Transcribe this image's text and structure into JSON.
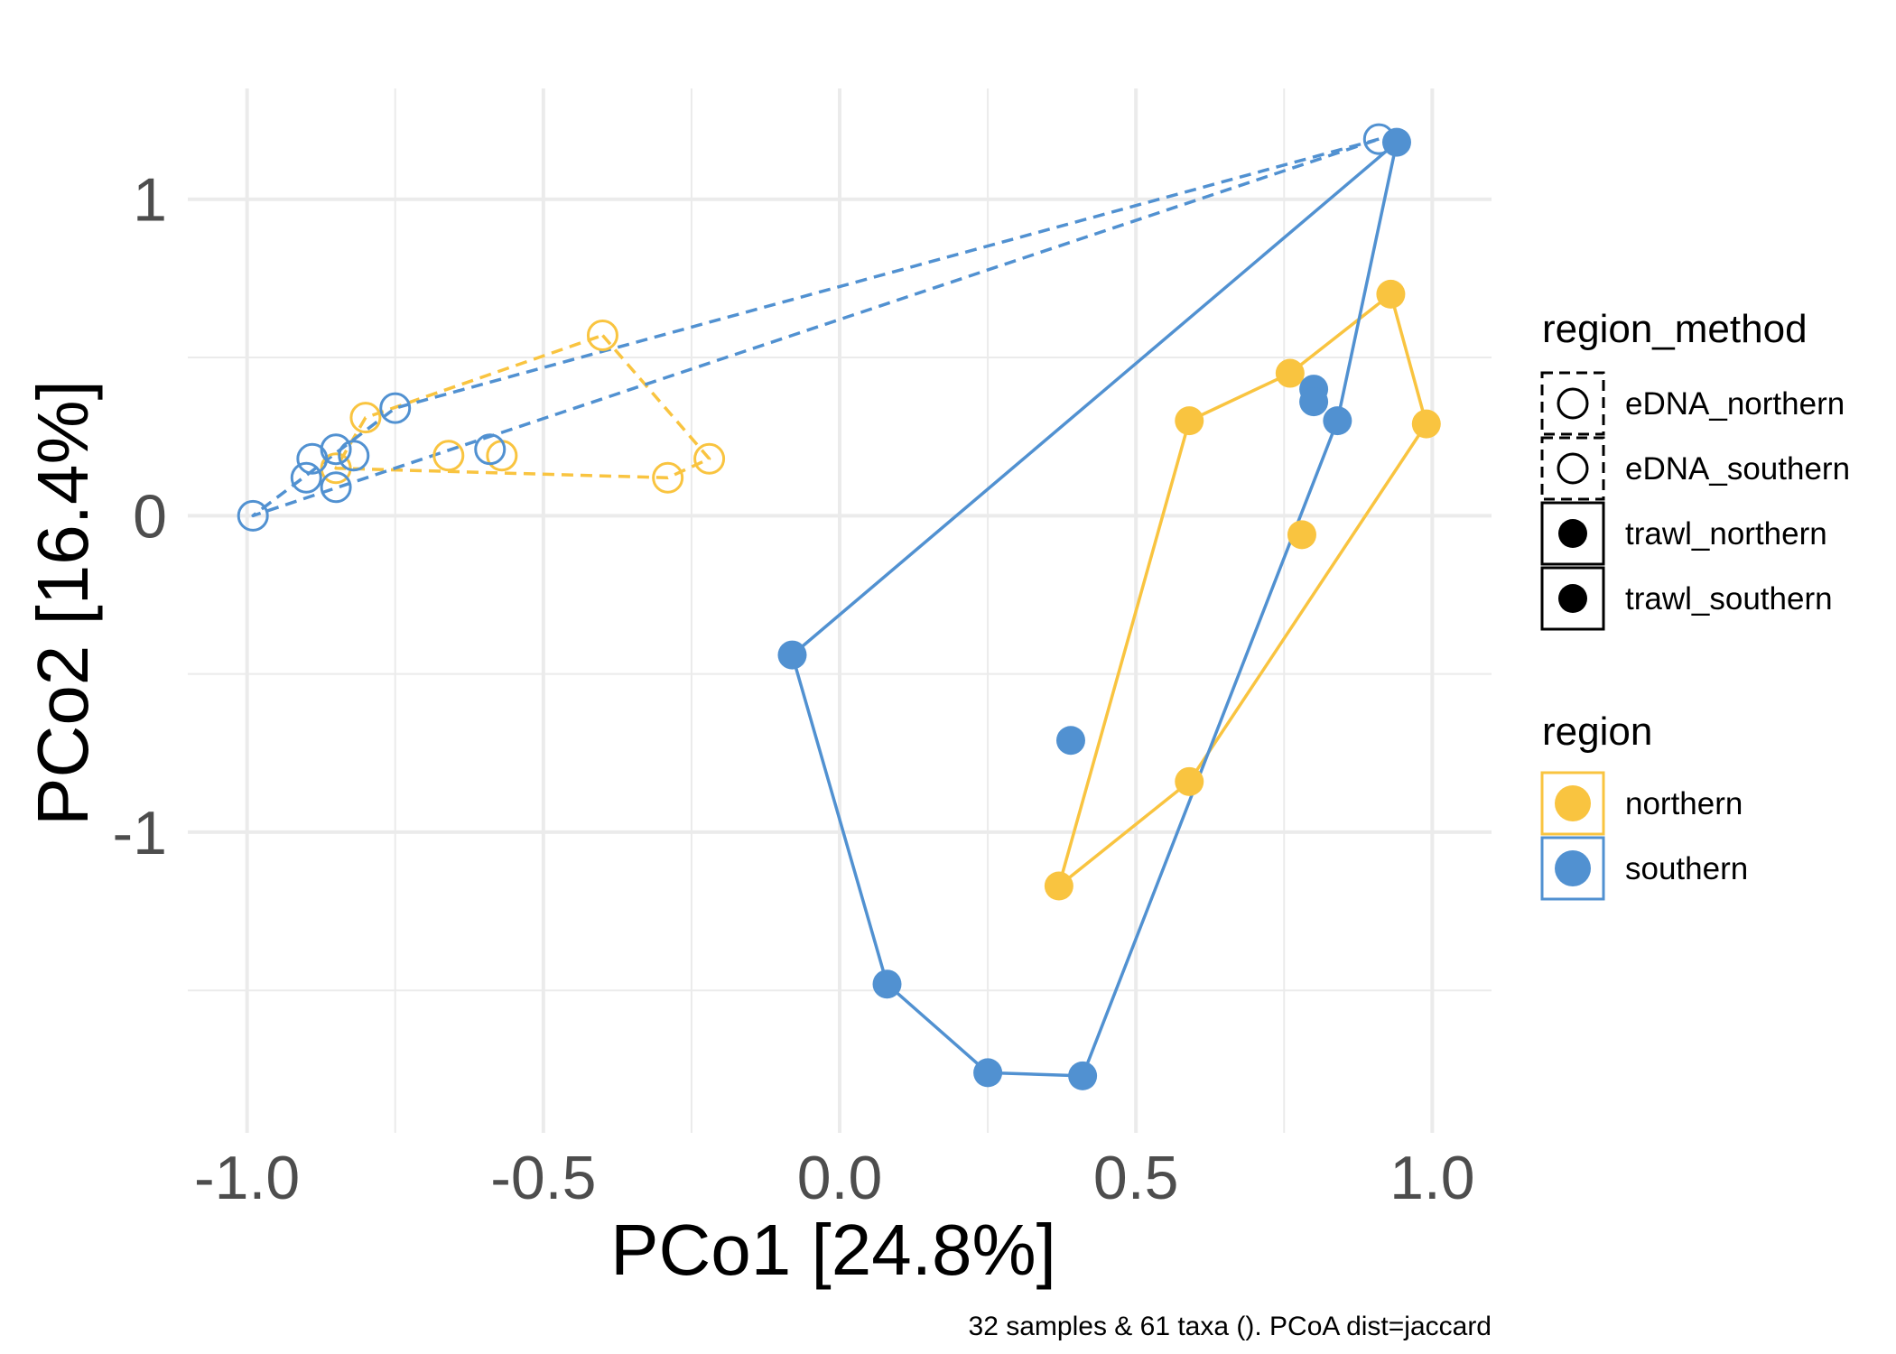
{
  "chart_data": {
    "type": "scatter",
    "xlabel": "PCo1 [24.8%]",
    "ylabel": "PCo2 [16.4%]",
    "caption": "32 samples & 61 taxa (). PCoA dist=jaccard",
    "xlim": [
      -1.1,
      1.1
    ],
    "ylim": [
      -1.95,
      1.35
    ],
    "x_ticks": [
      {
        "value": -1.0,
        "label": "-1.0"
      },
      {
        "value": -0.5,
        "label": "-0.5"
      },
      {
        "value": 0.0,
        "label": "0.0"
      },
      {
        "value": 0.5,
        "label": "0.5"
      },
      {
        "value": 1.0,
        "label": "1.0"
      }
    ],
    "y_ticks": [
      {
        "value": 1,
        "label": "1"
      },
      {
        "value": 0,
        "label": "0"
      },
      {
        "value": -1,
        "label": "-1"
      }
    ],
    "x_minor_gridlines": [
      -0.75,
      -0.25,
      0.25,
      0.75
    ],
    "y_minor_gridlines": [
      0.5,
      -0.5,
      -1.5
    ],
    "grid": true,
    "legend_position": "right",
    "colors": {
      "northern": "#f9c440",
      "southern": "#5191d1",
      "grid": "#ebebeb"
    },
    "series": [
      {
        "region": "northern",
        "method": "eDNA",
        "color": "#f9c440",
        "filled": false,
        "dashed": true,
        "points": [
          {
            "x": -0.4,
            "y": 0.57
          },
          {
            "x": -0.22,
            "y": 0.18
          },
          {
            "x": -0.29,
            "y": 0.12
          },
          {
            "x": -0.57,
            "y": 0.19
          },
          {
            "x": -0.66,
            "y": 0.19
          },
          {
            "x": -0.85,
            "y": 0.15
          },
          {
            "x": -0.8,
            "y": 0.31
          }
        ],
        "hull": [
          {
            "x": -0.4,
            "y": 0.57
          },
          {
            "x": -0.22,
            "y": 0.18
          },
          {
            "x": -0.29,
            "y": 0.12
          },
          {
            "x": -0.85,
            "y": 0.15
          },
          {
            "x": -0.8,
            "y": 0.31
          },
          {
            "x": -0.4,
            "y": 0.57
          }
        ]
      },
      {
        "region": "southern",
        "method": "eDNA",
        "color": "#5191d1",
        "filled": false,
        "dashed": true,
        "points": [
          {
            "x": 0.91,
            "y": 1.19
          },
          {
            "x": -0.99,
            "y": 0.0
          },
          {
            "x": -0.9,
            "y": 0.12
          },
          {
            "x": -0.89,
            "y": 0.18
          },
          {
            "x": -0.85,
            "y": 0.09
          },
          {
            "x": -0.85,
            "y": 0.21
          },
          {
            "x": -0.82,
            "y": 0.19
          },
          {
            "x": -0.75,
            "y": 0.34
          },
          {
            "x": -0.59,
            "y": 0.21
          }
        ],
        "hull": [
          {
            "x": 0.91,
            "y": 1.19
          },
          {
            "x": -0.75,
            "y": 0.34
          },
          {
            "x": -0.99,
            "y": 0.0
          },
          {
            "x": 0.91,
            "y": 1.19
          }
        ]
      },
      {
        "region": "northern",
        "method": "trawl",
        "color": "#f9c440",
        "filled": true,
        "dashed": false,
        "points": [
          {
            "x": 0.93,
            "y": 0.7
          },
          {
            "x": 0.99,
            "y": 0.29
          },
          {
            "x": 0.76,
            "y": 0.45
          },
          {
            "x": 0.59,
            "y": 0.3
          },
          {
            "x": 0.78,
            "y": -0.06
          },
          {
            "x": 0.59,
            "y": -0.84
          },
          {
            "x": 0.37,
            "y": -1.17
          }
        ],
        "hull": [
          {
            "x": 0.93,
            "y": 0.7
          },
          {
            "x": 0.99,
            "y": 0.29
          },
          {
            "x": 0.59,
            "y": -0.84
          },
          {
            "x": 0.37,
            "y": -1.17
          },
          {
            "x": 0.59,
            "y": 0.3
          },
          {
            "x": 0.76,
            "y": 0.45
          },
          {
            "x": 0.93,
            "y": 0.7
          }
        ]
      },
      {
        "region": "southern",
        "method": "trawl",
        "color": "#5191d1",
        "filled": true,
        "dashed": false,
        "points": [
          {
            "x": 0.94,
            "y": 1.18
          },
          {
            "x": 0.8,
            "y": 0.4
          },
          {
            "x": 0.8,
            "y": 0.36
          },
          {
            "x": 0.84,
            "y": 0.3
          },
          {
            "x": 0.39,
            "y": -0.71
          },
          {
            "x": -0.08,
            "y": -0.44
          },
          {
            "x": 0.08,
            "y": -1.48
          },
          {
            "x": 0.25,
            "y": -1.76
          },
          {
            "x": 0.41,
            "y": -1.77
          }
        ],
        "hull": [
          {
            "x": 0.94,
            "y": 1.18
          },
          {
            "x": 0.84,
            "y": 0.3
          },
          {
            "x": 0.41,
            "y": -1.77
          },
          {
            "x": 0.25,
            "y": -1.76
          },
          {
            "x": 0.08,
            "y": -1.48
          },
          {
            "x": -0.08,
            "y": -0.44
          },
          {
            "x": 0.94,
            "y": 1.18
          }
        ]
      }
    ],
    "legends": [
      {
        "title": "region_method",
        "entries": [
          {
            "label": "eDNA_northern",
            "filled": false,
            "dashed": true
          },
          {
            "label": "eDNA_southern",
            "filled": false,
            "dashed": true
          },
          {
            "label": "trawl_northern",
            "filled": true,
            "dashed": false
          },
          {
            "label": "trawl_southern",
            "filled": true,
            "dashed": false
          }
        ]
      },
      {
        "title": "region",
        "entries": [
          {
            "label": "northern",
            "color": "#f9c440"
          },
          {
            "label": "southern",
            "color": "#5191d1"
          }
        ]
      }
    ]
  }
}
